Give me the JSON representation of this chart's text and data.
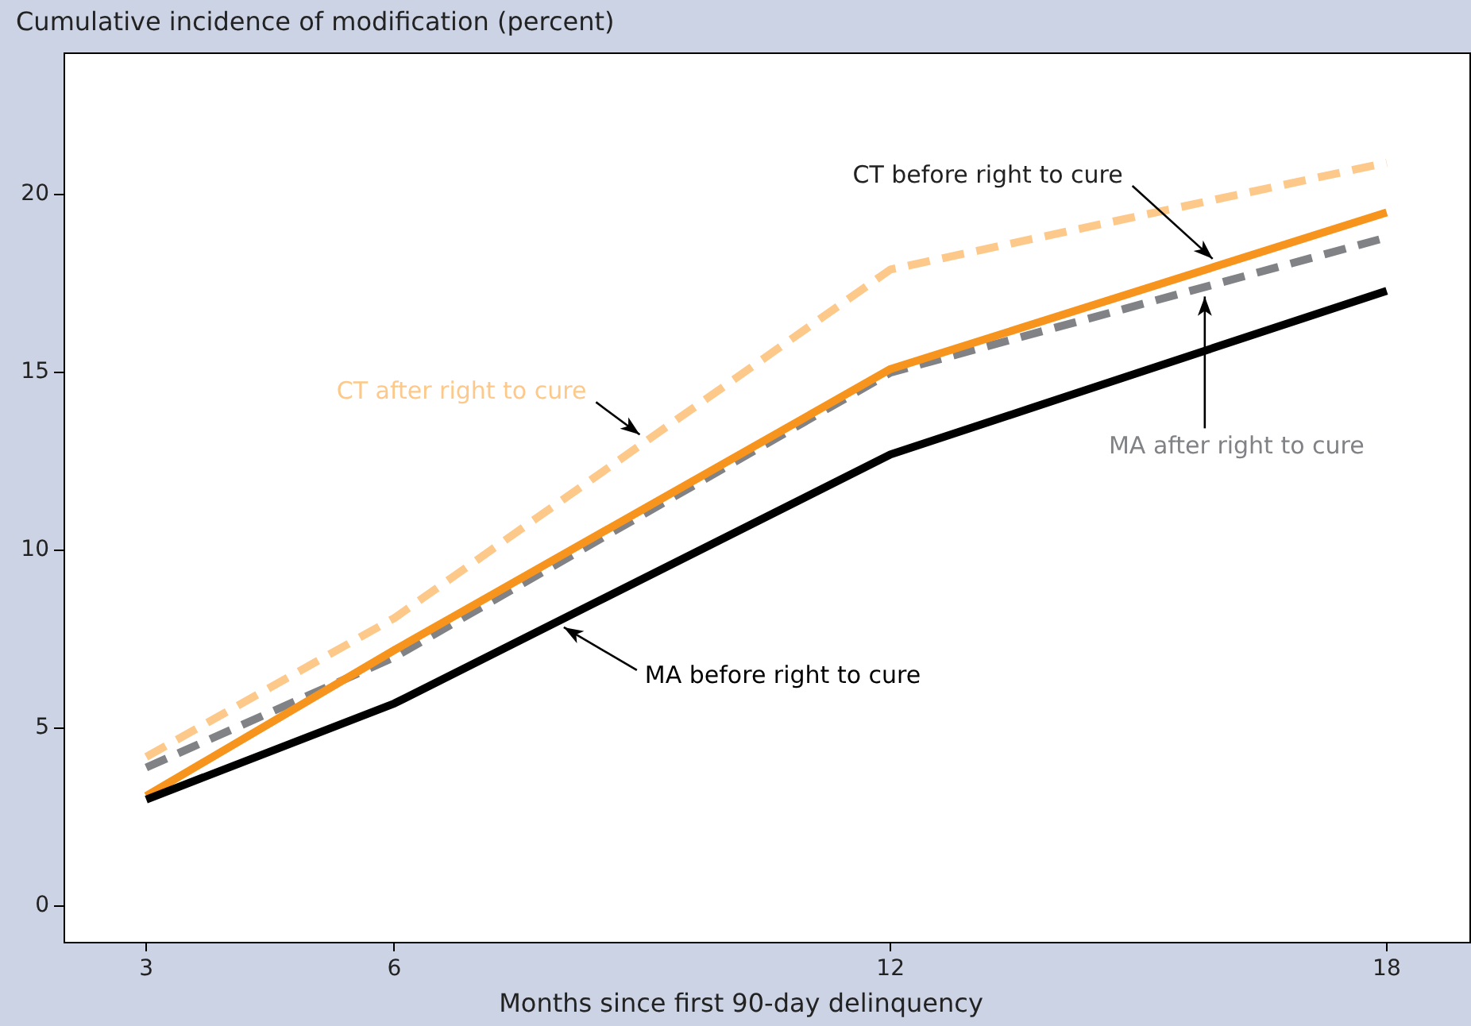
{
  "chart_data": {
    "type": "line",
    "ylabel": "Cumulative incidence of modification (percent)",
    "xlabel": "Months since first 90-day delinquency",
    "x": [
      3,
      6,
      12,
      18
    ],
    "series": [
      {
        "name": "MA before right to cure",
        "color": "#000000",
        "line_style": "solid",
        "values": [
          3.0,
          5.7,
          12.7,
          17.3
        ]
      },
      {
        "name": "CT before right to cure",
        "color": "#f7941d",
        "line_style": "solid",
        "values": [
          3.1,
          7.2,
          15.1,
          19.5
        ]
      },
      {
        "name": "MA after right to cure",
        "color": "#808285",
        "line_style": "dashed",
        "values": [
          3.9,
          7.0,
          15.0,
          18.8
        ]
      },
      {
        "name": "CT after right to cure",
        "color": "#fdc98a",
        "line_style": "dashed",
        "values": [
          4.2,
          8.1,
          17.9,
          20.9
        ]
      }
    ],
    "xlim": [
      2,
      19
    ],
    "xticks": [
      3,
      6,
      12,
      18
    ],
    "ylim": [
      -1,
      24
    ],
    "yticks": [
      0,
      5,
      10,
      15,
      20
    ],
    "grid": false,
    "legend": false,
    "marker": "none"
  }
}
